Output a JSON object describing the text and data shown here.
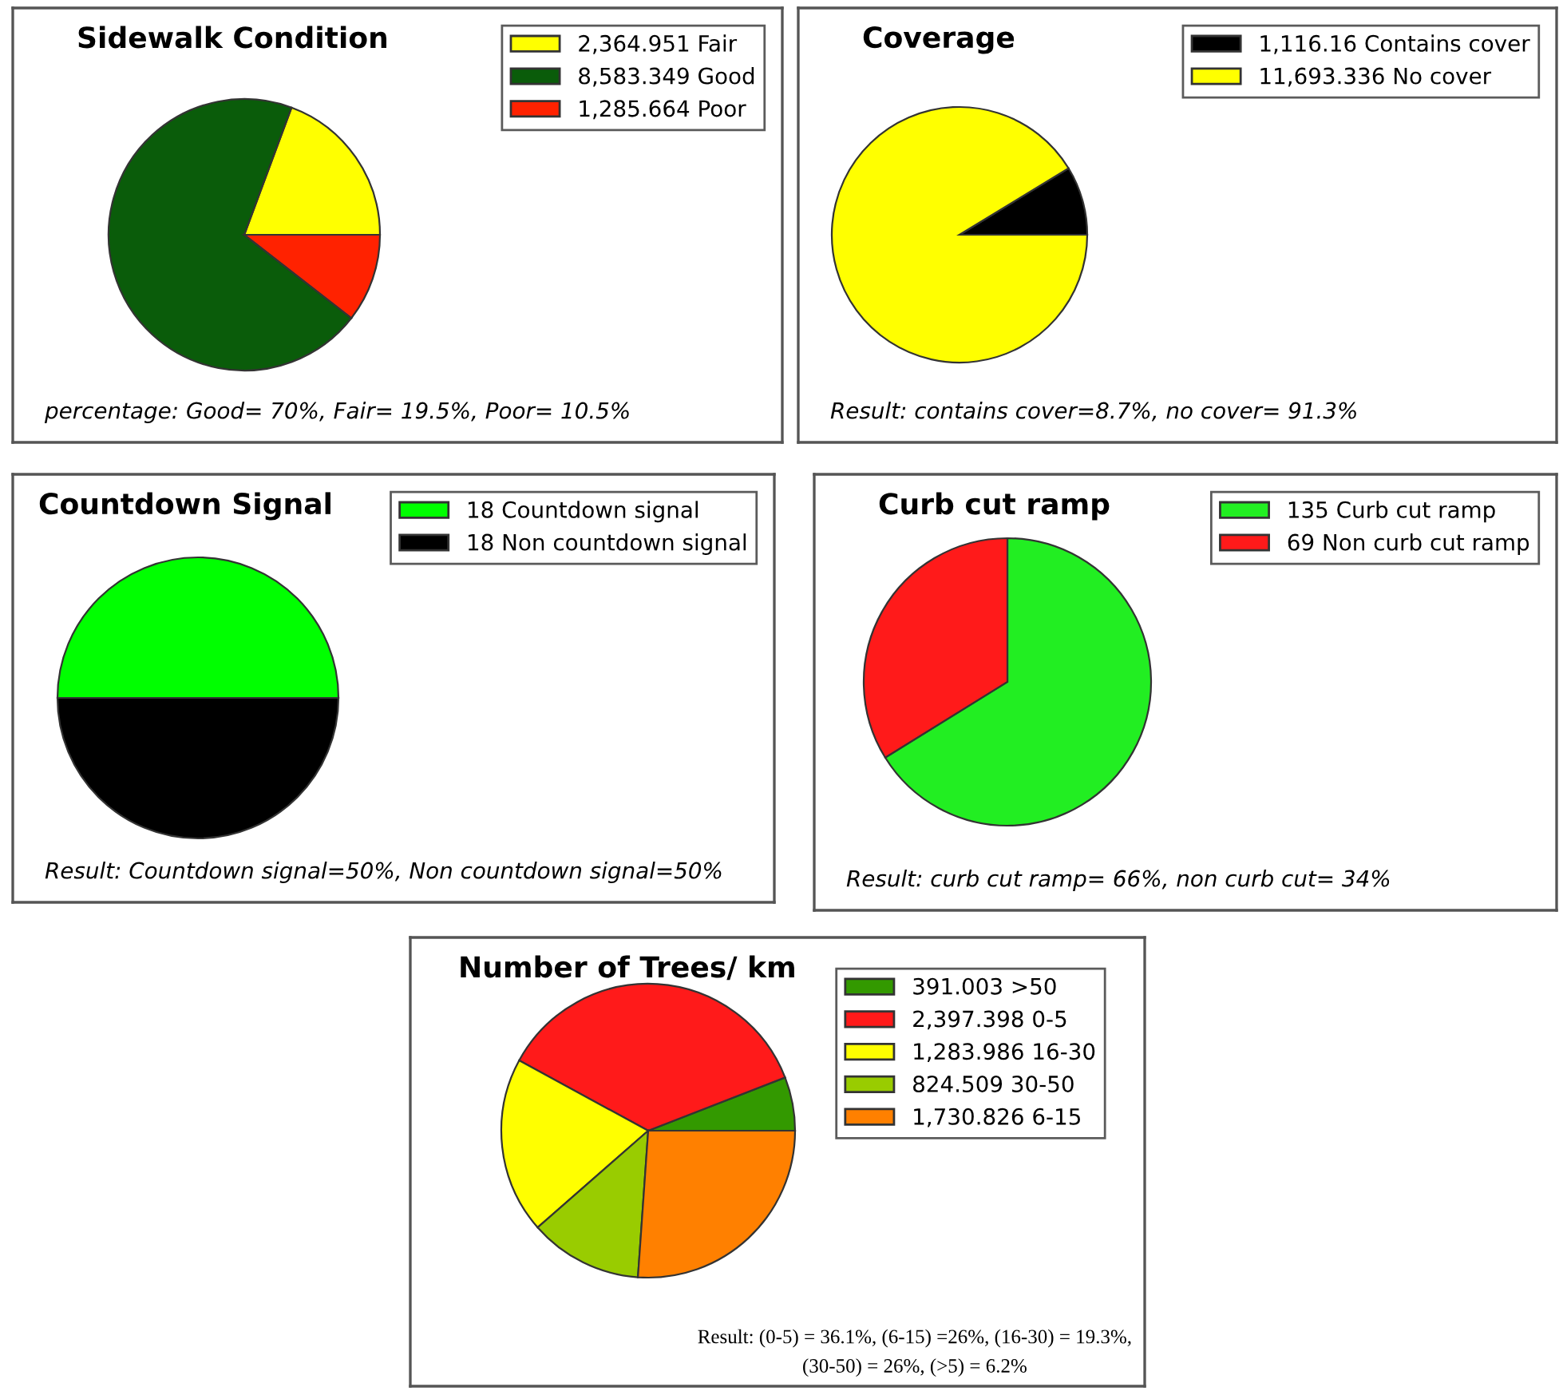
{
  "chart_data": [
    {
      "type": "pie",
      "title": "Sidewalk Condition",
      "categories": [
        "2,364.951 Fair",
        "8,583.349 Good",
        "1,285.664 Poor"
      ],
      "values": [
        2364.951,
        8583.349,
        1285.664
      ],
      "colors": [
        "#ffff00",
        "#0a5c0a",
        "#ff2200"
      ],
      "legend": "top right",
      "annotations": [
        "percentage: Good= 70%, Fair= 19.5%, Poor= 10.5%"
      ]
    },
    {
      "type": "pie",
      "title": "Coverage",
      "categories": [
        "1,116.16 Contains cover",
        "11,693.336 No cover"
      ],
      "values": [
        1116.16,
        11693.336
      ],
      "colors": [
        "#000000",
        "#ffff00"
      ],
      "legend": "top right",
      "annotations": [
        "Result: contains cover=8.7%, no cover= 91.3%"
      ]
    },
    {
      "type": "pie",
      "title": "Countdown Signal",
      "categories": [
        "18 Countdown signal",
        "18 Non countdown signal"
      ],
      "values": [
        18,
        18
      ],
      "colors": [
        "#00ff00",
        "#000000"
      ],
      "legend": "top right",
      "annotations": [
        "Result: Countdown signal=50%, Non countdown signal=50%"
      ]
    },
    {
      "type": "pie",
      "title": "Curb cut ramp",
      "categories": [
        "135 Curb cut ramp",
        "69 Non curb cut ramp"
      ],
      "values": [
        135,
        69
      ],
      "colors": [
        "#22ee22",
        "#ff1a1a"
      ],
      "legend": "top right",
      "annotations": [
        "Result: curb cut ramp= 66%, non curb cut= 34%"
      ]
    },
    {
      "type": "pie",
      "title": "Number of Trees/ km",
      "categories": [
        "391.003 >50",
        "2,397.398 0-5",
        "1,283.986 16-30",
        "824.509 30-50",
        "1,730.826 6-15"
      ],
      "values": [
        391.003,
        2397.398,
        1283.986,
        824.509,
        1730.826
      ],
      "colors": [
        "#339900",
        "#ff1a1a",
        "#ffff00",
        "#99cc00",
        "#ff8000"
      ],
      "legend": "top right",
      "annotations": [
        "Result: (0-5) = 36.1%, (6-15) =26%, (16-30) = 19.3%,\n(30-50) = 26%, (>5) = 6.2%"
      ]
    }
  ]
}
